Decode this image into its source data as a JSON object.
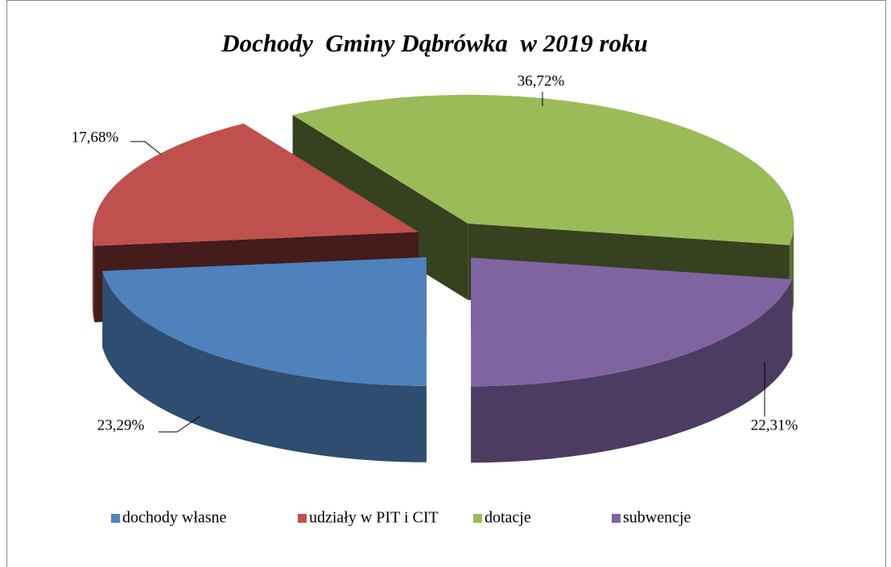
{
  "chart_data": {
    "type": "pie",
    "title": "Dochody  Gminy Dąbrówka  w 2019 roku",
    "categories": [
      "dochody własne",
      "udziały w PIT i CIT",
      "dotacje",
      "subwencje"
    ],
    "values": [
      23.29,
      17.68,
      36.72,
      22.31
    ],
    "value_labels": [
      "23,29%",
      "17,68%",
      "36,72%",
      "22,31%"
    ],
    "colors": [
      "#4f81bd",
      "#c0504d",
      "#9bbb59",
      "#8064a2"
    ],
    "legend": "bottom"
  }
}
